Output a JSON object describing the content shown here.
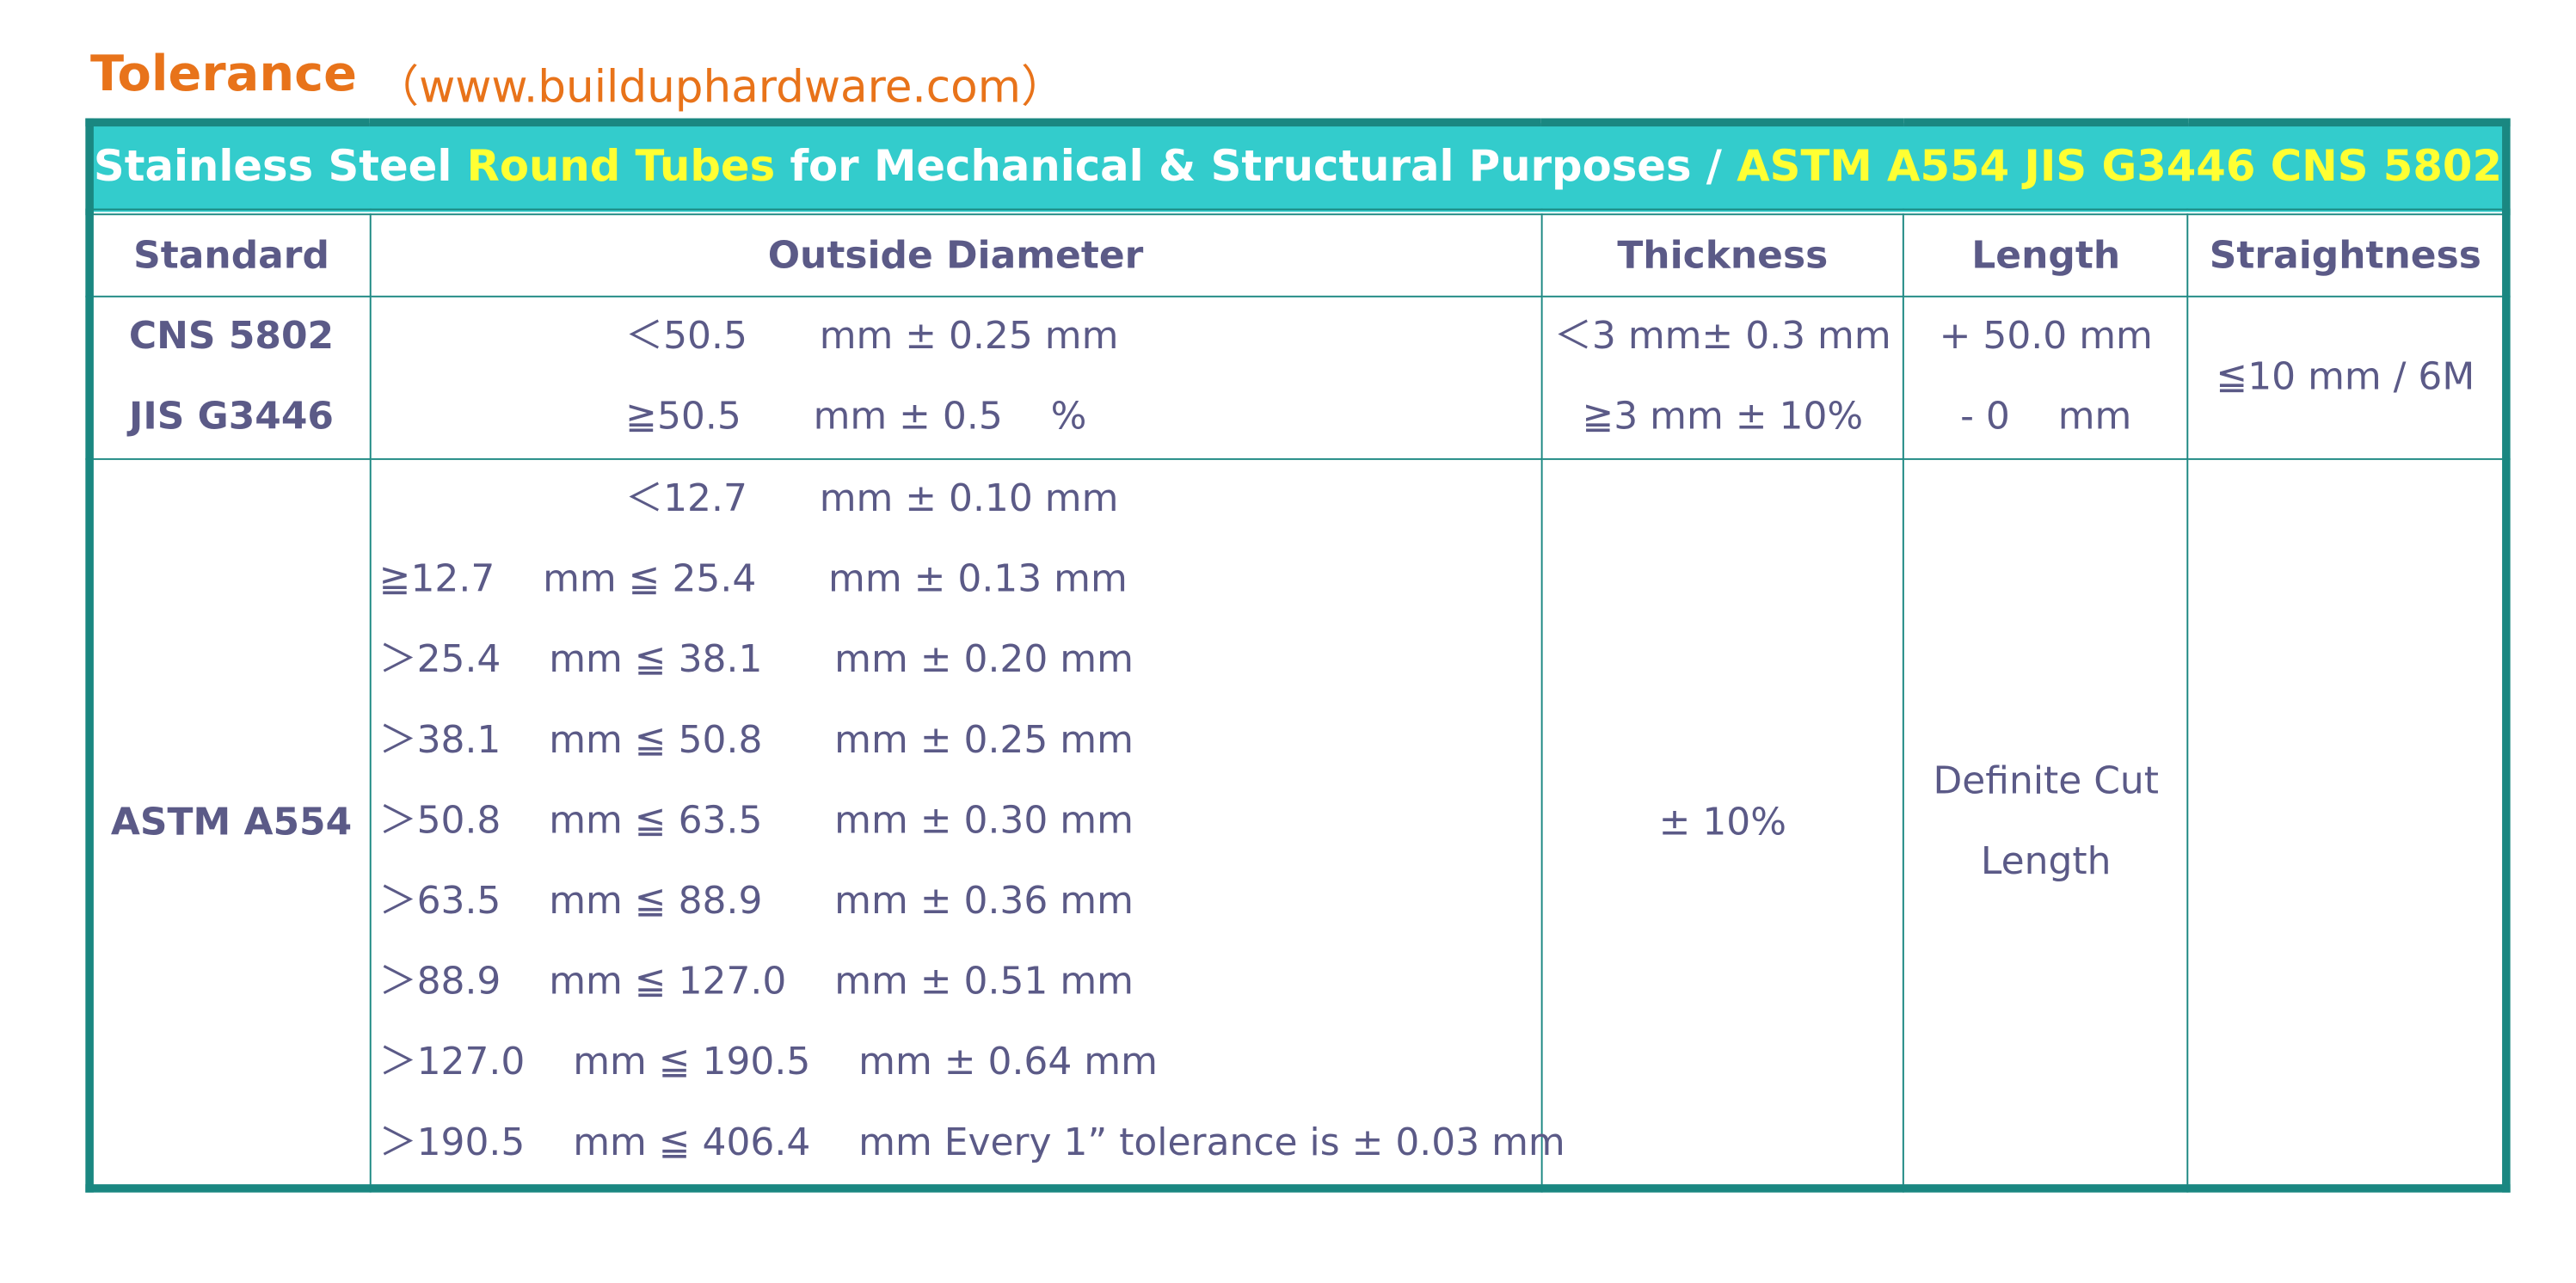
{
  "header": {
    "title": "Tolerance",
    "url": "（www.builduphardware.com）"
  },
  "table": {
    "caption": [
      "Stainless Steel ",
      "Round Tubes",
      " for Mechanical & Structural Purposes / ",
      "ASTM A554 JIS G3446 CNS 5802"
    ],
    "columns": [
      "Standard",
      "Outside Diameter",
      "Thickness",
      "Length",
      "Straightness"
    ],
    "rows": [
      {
        "standard": [
          "CNS 5802",
          "JIS G3446"
        ],
        "outside_diameter": [
          "＜50.5      mm ± 0.25 mm",
          "≧50.5      mm ± 0.5    %"
        ],
        "thickness": [
          "＜3 mm± 0.3 mm",
          "≧3 mm ± 10%"
        ],
        "length": [
          "+ 50.0 mm",
          "- 0    mm"
        ],
        "straightness": "≦10 mm / 6M"
      },
      {
        "standard": "ASTM A554",
        "outside_diameter": [
          "＜12.7      mm ± 0.10 mm",
          "≧12.7    mm ≦ 25.4      mm ± 0.13 mm",
          "＞25.4    mm ≦ 38.1      mm ± 0.20 mm",
          "＞38.1    mm ≦ 50.8      mm ± 0.25 mm",
          "＞50.8    mm ≦ 63.5      mm ± 0.30 mm",
          "＞63.5    mm ≦ 88.9      mm ± 0.36 mm",
          "＞88.9    mm ≦ 127.0    mm ± 0.51 mm",
          "＞127.0    mm ≦ 190.5    mm ± 0.64 mm",
          "＞190.5    mm ≦ 406.4    mm Every 1” tolerance is ± 0.03 mm"
        ],
        "thickness": "± 10%",
        "length": [
          "Definite Cut",
          "Length"
        ]
      }
    ]
  }
}
